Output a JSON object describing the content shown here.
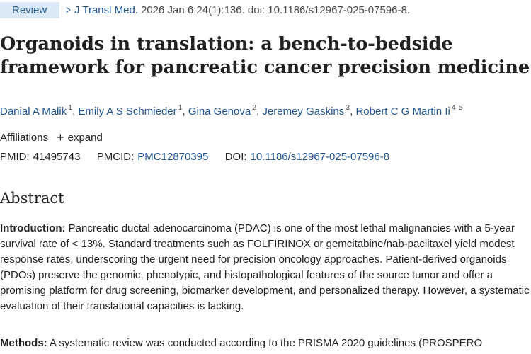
{
  "header": {
    "badge": "Review",
    "chevron_icon": "chevron-right-icon",
    "journal": "J Transl Med.",
    "citation": "2026 Jan 6;24(1):136. doi: 10.1186/s12967-025-07596-8."
  },
  "title": "Organoids in translation: a bench-to-bedside framework for pancreatic cancer precision medicine",
  "authors": [
    {
      "name": "Danial A Malik",
      "aff": "1"
    },
    {
      "name": "Emily A S Schmieder",
      "aff": "1"
    },
    {
      "name": "Gina Genova",
      "aff": "2"
    },
    {
      "name": "Jeremey Gaskins",
      "aff": "3"
    },
    {
      "name": "Robert C G Martin Ii",
      "aff": "4",
      "aff2": "5"
    }
  ],
  "affiliations": {
    "label": "Affiliations",
    "toggle": "expand",
    "icon": "plus-icon"
  },
  "ids": {
    "pmid_label": "PMID:",
    "pmid": "41495743",
    "pmcid_label": "PMCID:",
    "pmcid": "PMC12870395",
    "doi_label": "DOI:",
    "doi": "10.1186/s12967-025-07596-8"
  },
  "abstract": {
    "heading": "Abstract",
    "intro_label": "Introduction:",
    "intro_text": " Pancreatic ductal adenocarcinoma (PDAC) is one of the most lethal malignancies with a 5-year survival rate of < 13%. Standard treatments such as FOLFIRINOX or gemcitabine/nab-paclitaxel yield modest response rates, underscoring the urgent need for precision oncology approaches. Patient-derived organoids (PDOs) preserve the genomic, phenotypic, and histopathological features of the source tumor and offer a promising platform for drug screening, biomarker development, and personalized therapy. However, a systematic evaluation of their translational capacities is lacking.",
    "methods_label": "Methods:",
    "methods_text": " A systematic review was conducted according to the PRISMA 2020 guidelines (PROSPERO"
  }
}
